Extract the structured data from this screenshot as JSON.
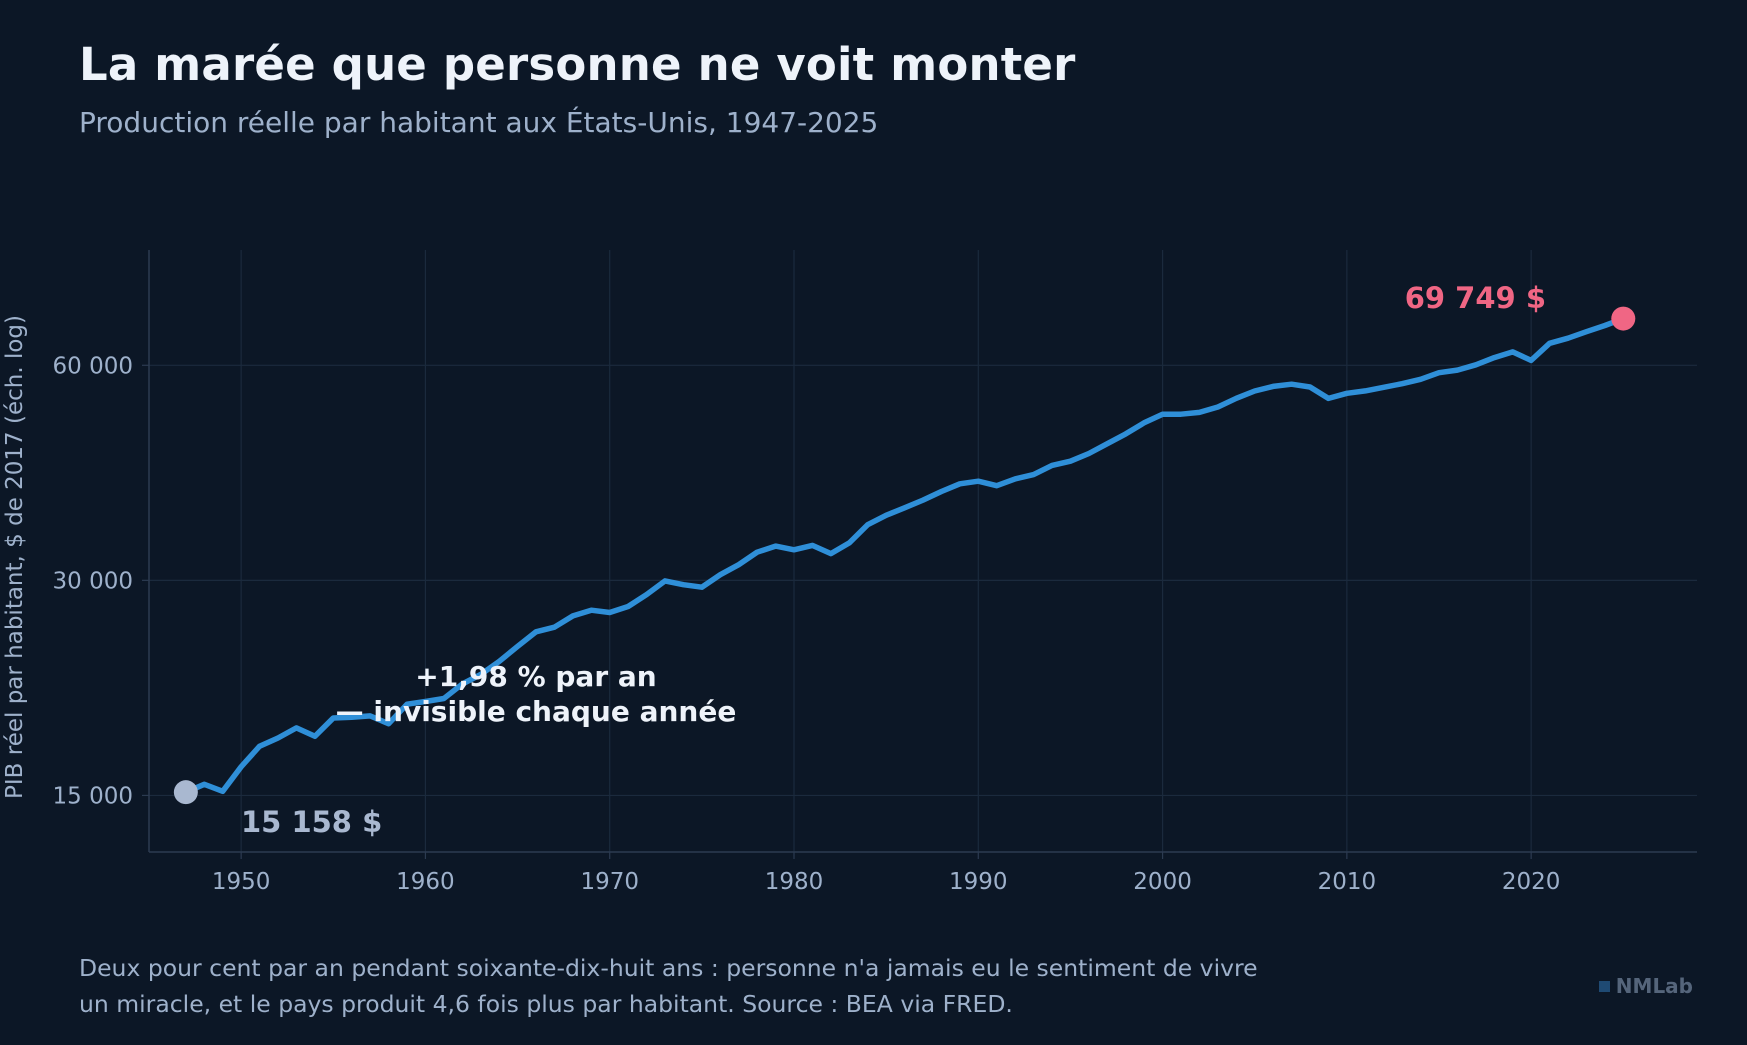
{
  "header": {
    "title": "La marée que personne ne voit monter",
    "subtitle": "Production réelle par habitant aux États-Unis, 1947-2025"
  },
  "footer": {
    "note_line1": "Deux pour cent par an pendant soixante-dix-huit ans : personne n'a jamais eu le sentiment de vivre",
    "note_line2": "un miracle, et le pays produit 4,6 fois plus par habitant. Source : BEA via FRED.",
    "brand": "NMLab"
  },
  "colors": {
    "background": "#0c1726",
    "line": "#2f8fd8",
    "start_marker": "#a9b8d0",
    "end_marker": "#f06684",
    "grid": "#1b2a3d",
    "axis": "#2c3b51",
    "tick_text": "#9eb1cb",
    "annotation_text": "#eef3fa"
  },
  "chart_data": {
    "type": "line",
    "title": "La marée que personne ne voit monter",
    "subtitle": "Production réelle par habitant aux États-Unis, 1947-2025",
    "xlabel": "",
    "ylabel": "PIB réel par habitant, $ de 2017 (éch. log)",
    "yscale": "log",
    "xlim": [
      1945,
      2029
    ],
    "ylim": [
      12500,
      87000
    ],
    "grid": true,
    "x_ticks": [
      1950,
      1960,
      1970,
      1980,
      1990,
      2000,
      2010,
      2020
    ],
    "x_tick_labels": [
      "1950",
      "1960",
      "1970",
      "1980",
      "1990",
      "2000",
      "2010",
      "2020"
    ],
    "y_ticks": [
      15000,
      30000,
      60000
    ],
    "y_tick_labels": [
      "15 000",
      "30 000",
      "60 000"
    ],
    "series": [
      {
        "x": [
          1947,
          1948,
          1949,
          1950,
          1951,
          1952,
          1953,
          1954,
          1955,
          1956,
          1957,
          1958,
          1959,
          1960,
          1961,
          1962,
          1963,
          1964,
          1965,
          1966,
          1967,
          1968,
          1969,
          1970,
          1971,
          1972,
          1973,
          1974,
          1975,
          1976,
          1977,
          1978,
          1979,
          1980,
          1981,
          1982,
          1983,
          1984,
          1985,
          1986,
          1987,
          1988,
          1989,
          1990,
          1991,
          1992,
          1993,
          1994,
          1995,
          1996,
          1997,
          1998,
          1999,
          2000,
          2001,
          2002,
          2003,
          2004,
          2005,
          2006,
          2007,
          2008,
          2009,
          2010,
          2011,
          2012,
          2013,
          2014,
          2015,
          2016,
          2017,
          2018,
          2019,
          2020,
          2021,
          2022,
          2023,
          2024,
          2025
        ],
        "y": [
          15158,
          15550,
          15200,
          16450,
          17580,
          18050,
          18650,
          18150,
          19250,
          19300,
          19380,
          18900,
          20130,
          20300,
          20500,
          21480,
          22150,
          23100,
          24250,
          25420,
          25800,
          26750,
          27250,
          27050,
          27580,
          28650,
          29950,
          29580,
          29350,
          30550,
          31550,
          32850,
          33500,
          33100,
          33580,
          32700,
          33850,
          35900,
          37000,
          37900,
          38850,
          39950,
          40950,
          41300,
          40700,
          41600,
          42180,
          43450,
          44050,
          45150,
          46600,
          48100,
          49850,
          51250,
          51250,
          51550,
          52450,
          53950,
          55230,
          56050,
          56450,
          55950,
          53930,
          54820,
          55250,
          55900,
          56550,
          57350,
          58580,
          59080,
          60100,
          61500,
          62650,
          60950,
          64400,
          65480,
          66850,
          68200,
          69749
        ]
      }
    ],
    "annotations": [
      {
        "text": "+1,98 % par an",
        "x": 1966,
        "y": 22000
      },
      {
        "text": "— invisible chaque année",
        "x": 1966,
        "y": 20000
      },
      {
        "text": "15 158 $",
        "x": 1947,
        "y": 15158
      },
      {
        "text": "69 749 $",
        "x": 2025,
        "y": 69749
      }
    ]
  }
}
